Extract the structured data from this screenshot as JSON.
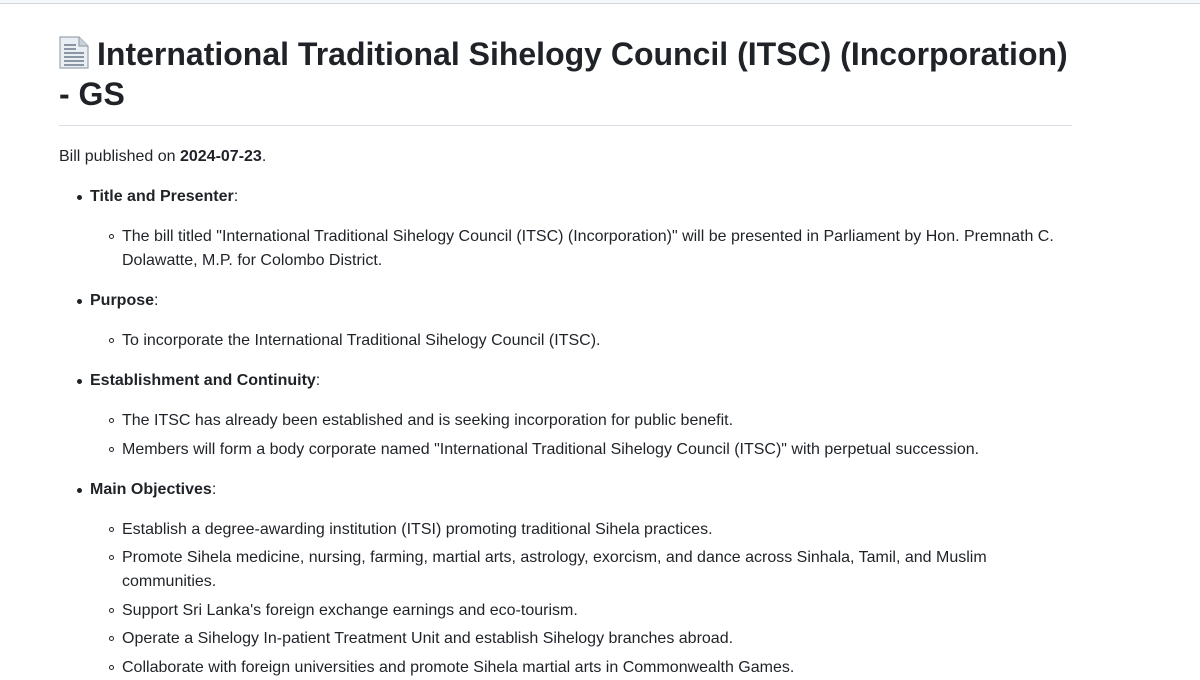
{
  "header": {
    "icon": "page-facing-up-icon",
    "title": "International Traditional Sihelogy Council (ITSC) (Incorporation) - GS"
  },
  "published": {
    "prefix": "Bill published on ",
    "date": "2024-07-23",
    "suffix": "."
  },
  "sections": [
    {
      "label": "Title and Presenter",
      "items": [
        "The bill titled \"International Traditional Sihelogy Council (ITSC) (Incorporation)\" will be presented in Parliament by Hon. Premnath C. Dolawatte, M.P. for Colombo District."
      ]
    },
    {
      "label": "Purpose",
      "items": [
        "To incorporate the International Traditional Sihelogy Council (ITSC)."
      ]
    },
    {
      "label": "Establishment and Continuity",
      "items": [
        "The ITSC has already been established and is seeking incorporation for public benefit.",
        "Members will form a body corporate named \"International Traditional Sihelogy Council (ITSC)\" with perpetual succession."
      ]
    },
    {
      "label": "Main Objectives",
      "items": [
        "Establish a degree-awarding institution (ITSI) promoting traditional Sihela practices.",
        "Promote Sihela medicine, nursing, farming, martial arts, astrology, exorcism, and dance across Sinhala, Tamil, and Muslim communities.",
        "Support Sri Lanka's foreign exchange earnings and eco-tourism.",
        "Operate a Sihelogy In-patient Treatment Unit and establish Sihelogy branches abroad.",
        "Collaborate with foreign universities and promote Sihela martial arts in Commonwealth Games."
      ]
    }
  ]
}
